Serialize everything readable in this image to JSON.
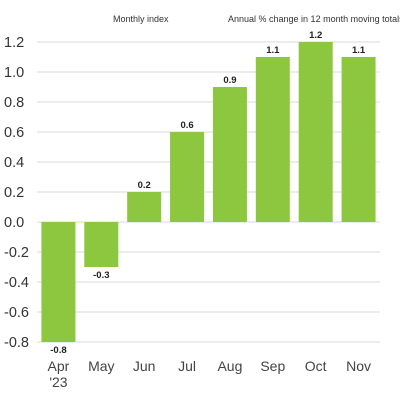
{
  "header": {
    "left_note": "Monthly index",
    "right_note": "Annual % change in 12 month moving totals"
  },
  "chart_data": {
    "type": "bar",
    "categories": [
      "Apr\n'23",
      "May",
      "Jun",
      "Jul",
      "Aug",
      "Sep",
      "Oct",
      "Nov"
    ],
    "values": [
      -0.8,
      -0.3,
      0.2,
      0.6,
      0.9,
      1.1,
      1.2,
      1.1
    ],
    "data_labels": [
      "-0.8",
      "-0.3",
      "0.2",
      "0.6",
      "0.9",
      "1.1",
      "1.2",
      "1.1"
    ],
    "yticks": [
      "1.2",
      "1.0",
      "0.8",
      "0.6",
      "0.4",
      "0.2",
      "0.0",
      "-0.2",
      "-0.4",
      "-0.6",
      "-0.8"
    ],
    "ytick_values": [
      1.2,
      1.0,
      0.8,
      0.6,
      0.4,
      0.2,
      0.0,
      -0.2,
      -0.4,
      -0.6,
      -0.8
    ],
    "ylim": [
      -0.8,
      1.2
    ],
    "grid": true,
    "legend": "none",
    "bar_color": "#8dc63f"
  }
}
